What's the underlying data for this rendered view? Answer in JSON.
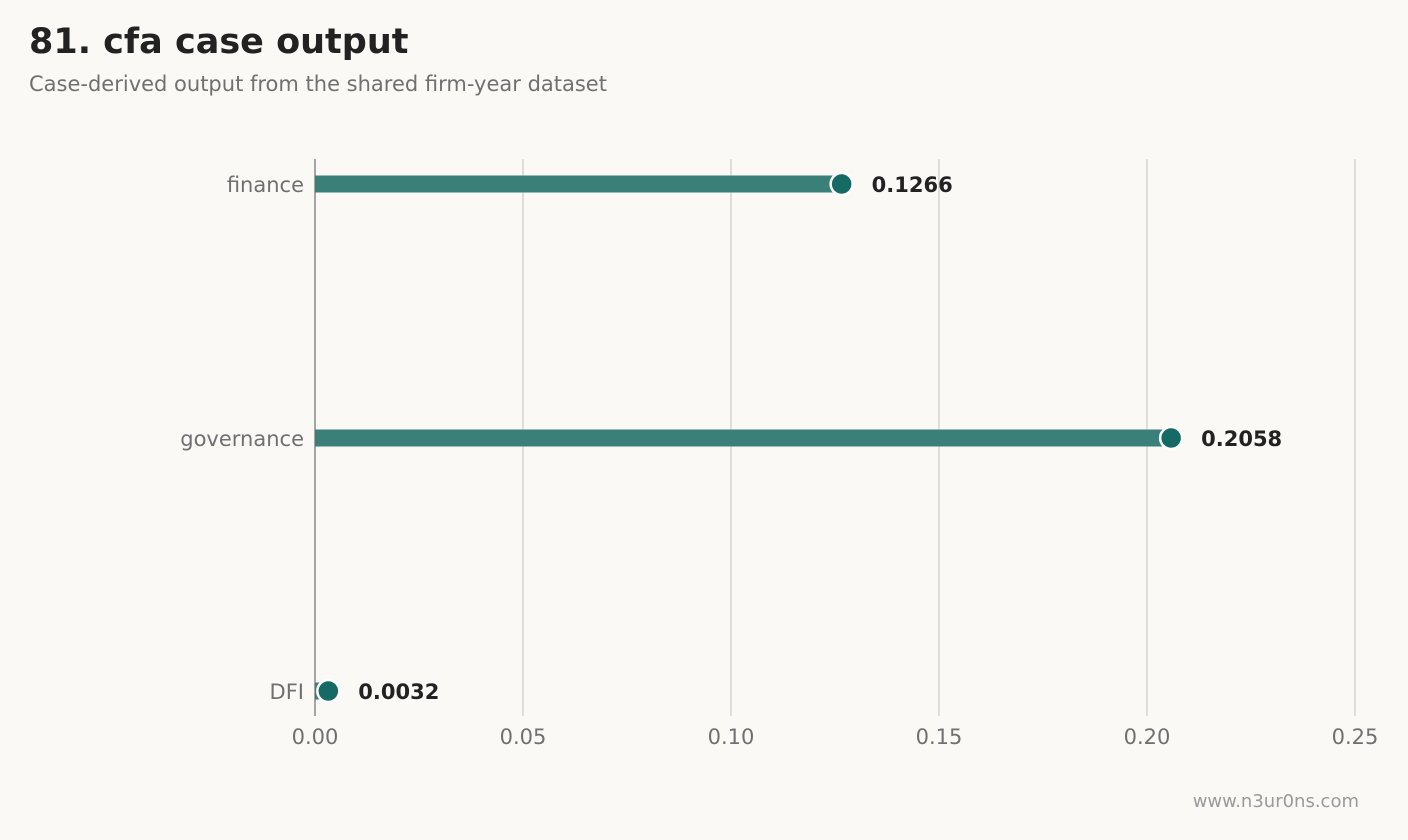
{
  "title": "81. cfa case output",
  "subtitle": "Case-derived output from the shared firm-year dataset",
  "watermark": "www.n3ur0ns.com",
  "colors": {
    "bar": "#3b7f79",
    "dot": "#156a66",
    "grid": "#d8d6d0",
    "axis": "#888888",
    "tick_text": "#707070",
    "value_text": "#222222"
  },
  "chart_data": {
    "type": "bar",
    "orientation": "horizontal",
    "style": "lollipop",
    "categories": [
      "finance",
      "governance",
      "DFI"
    ],
    "values": [
      0.1266,
      0.2058,
      0.0032
    ],
    "data_labels": [
      "0.1266",
      "0.2058",
      "0.0032"
    ],
    "xlim": [
      0,
      0.25
    ],
    "xticks": [
      0.0,
      0.05,
      0.1,
      0.15,
      0.2,
      0.25
    ],
    "xtick_labels": [
      "0.00",
      "0.05",
      "0.10",
      "0.15",
      "0.20",
      "0.25"
    ],
    "grid": "vertical"
  }
}
